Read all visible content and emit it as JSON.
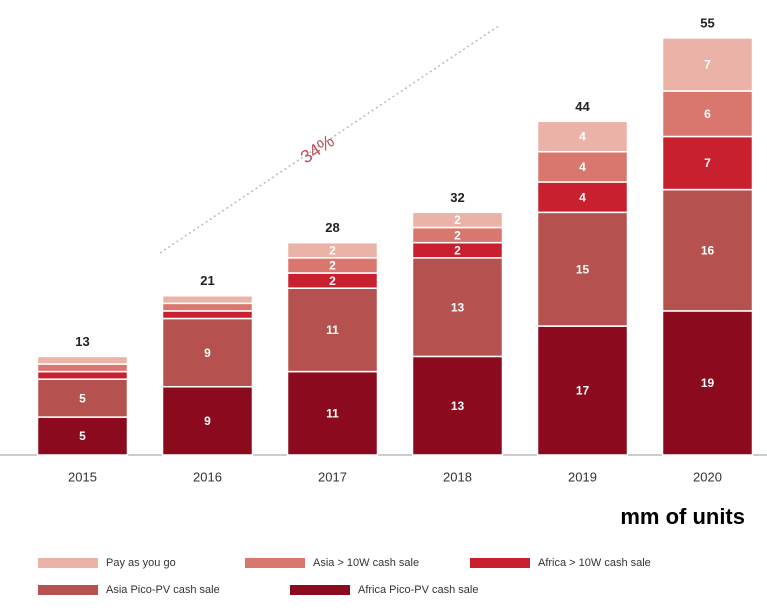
{
  "chart_data": {
    "type": "stacked-bar",
    "categories": [
      "2015",
      "2016",
      "2017",
      "2018",
      "2019",
      "2020"
    ],
    "series": [
      {
        "name": "Africa Pico-PV cash sale",
        "color": "#8b0a1e",
        "values": [
          5,
          9,
          11,
          13,
          17,
          19
        ]
      },
      {
        "name": "Asia Pico-PV cash sale",
        "color": "#b5524f",
        "values": [
          5,
          9,
          11,
          13,
          15,
          16
        ]
      },
      {
        "name": "Africa > 10W cash sale",
        "color": "#c8202f",
        "values": [
          1,
          1,
          2,
          2,
          4,
          7
        ]
      },
      {
        "name": "Asia > 10W cash sale",
        "color": "#d9776f",
        "values": [
          1,
          1,
          2,
          2,
          4,
          6
        ]
      },
      {
        "name": "Pay as you go",
        "color": "#ebb3a8",
        "values": [
          1,
          1,
          2,
          2,
          4,
          7
        ]
      }
    ],
    "totals": [
      13,
      21,
      28,
      32,
      44,
      55
    ],
    "annotation": "34%",
    "unit_label": "mm of units",
    "ylim": [
      0,
      60
    ]
  }
}
